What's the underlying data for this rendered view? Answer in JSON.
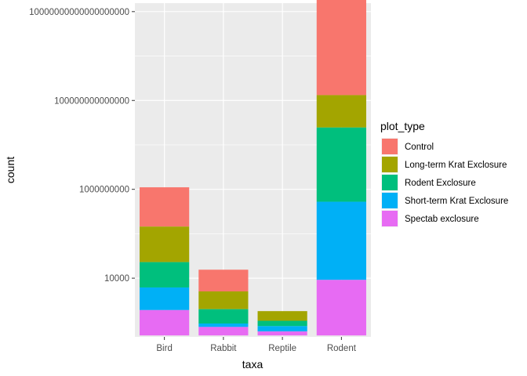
{
  "chart_data": {
    "type": "bar",
    "stacked": true,
    "y_scale": "log10",
    "xlabel": "taxa",
    "ylabel": "count",
    "categories": [
      "Bird",
      "Rabbit",
      "Reptile",
      "Rodent"
    ],
    "y_ticks": [
      10000,
      1000000000,
      100000000000000,
      10000000000000000000
    ],
    "y_tick_labels": [
      "10000",
      "1000000000",
      "100000000000000",
      "10000000000000000000"
    ],
    "ylim": [
      5,
      30000000000000000000
    ],
    "grid": true,
    "legend": {
      "title": "plot_type",
      "position": "right"
    },
    "series": [
      {
        "name": "Control",
        "color": "#F8766D",
        "segment_top": [
          1300000000,
          30000,
          5,
          8000000000000000000000
        ]
      },
      {
        "name": "Long-term Krat Exclosure",
        "color": "#A3A500",
        "segment_top": [
          8000000,
          1800,
          140,
          200000000000000
        ]
      },
      {
        "name": "Rodent Exclosure",
        "color": "#00BF7D",
        "segment_top": [
          80000,
          180,
          40,
          3000000000000
        ]
      },
      {
        "name": "Short-term Krat Exclosure",
        "color": "#00B0F6",
        "segment_top": [
          3000,
          28,
          20,
          200000000
        ]
      },
      {
        "name": "Spectab exclosure",
        "color": "#E76BF3",
        "segment_top": [
          160,
          18,
          10,
          8000
        ]
      }
    ],
    "bar_base": 6
  }
}
